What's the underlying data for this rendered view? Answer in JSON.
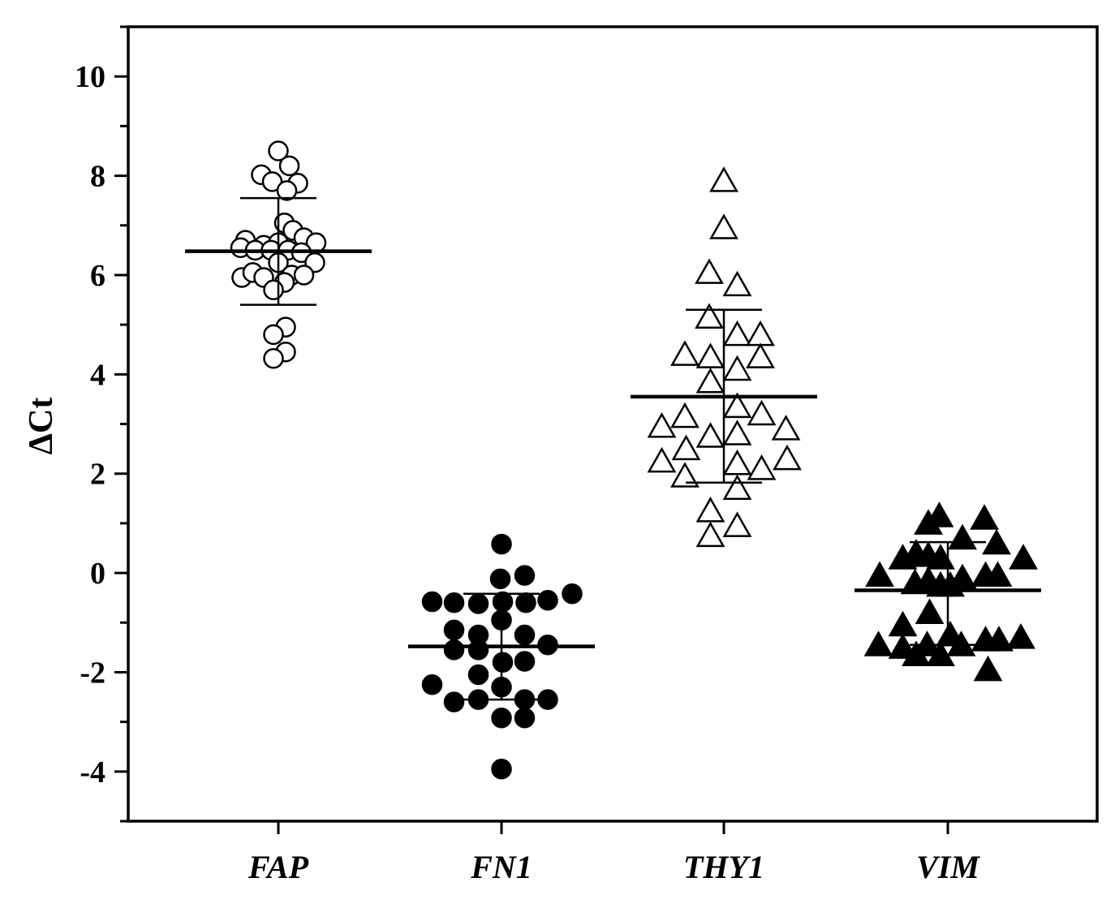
{
  "chart_data": {
    "type": "scatter",
    "subtype": "dot-plot with mean and SD",
    "xlabel": "",
    "ylabel": "ΔCt",
    "ylim": [
      -5,
      11
    ],
    "yticks": [
      -4,
      -2,
      0,
      2,
      4,
      6,
      8,
      10
    ],
    "ytick_labels": [
      "-4",
      "-2",
      "0",
      "2",
      "4",
      "6",
      "8",
      "10"
    ],
    "grid": false,
    "legend": "none",
    "categories": [
      "FAP",
      "FN1",
      "THY1",
      "VIM"
    ],
    "series": [
      {
        "category": "FAP",
        "marker": "circle-open",
        "mean": 6.48,
        "sd_low": 5.4,
        "sd_high": 7.55,
        "points": [
          {
            "x": 0,
            "y": 8.5
          },
          {
            "x": 0.45,
            "y": 8.2
          },
          {
            "x": -0.7,
            "y": 8.02
          },
          {
            "x": -0.25,
            "y": 7.88
          },
          {
            "x": 0.8,
            "y": 7.85
          },
          {
            "x": 0.35,
            "y": 7.7
          },
          {
            "x": 0.25,
            "y": 7.05
          },
          {
            "x": 0.6,
            "y": 6.9
          },
          {
            "x": -1.35,
            "y": 6.7
          },
          {
            "x": -0.6,
            "y": 6.6
          },
          {
            "x": 0,
            "y": 6.65
          },
          {
            "x": 1.05,
            "y": 6.75
          },
          {
            "x": 1.55,
            "y": 6.65
          },
          {
            "x": -1.55,
            "y": 6.55
          },
          {
            "x": -0.95,
            "y": 6.5
          },
          {
            "x": -0.3,
            "y": 6.5
          },
          {
            "x": 0.4,
            "y": 6.5
          },
          {
            "x": 0.95,
            "y": 6.45
          },
          {
            "x": 0,
            "y": 6.25
          },
          {
            "x": 1.5,
            "y": 6.25
          },
          {
            "x": -1.5,
            "y": 5.95
          },
          {
            "x": -1.05,
            "y": 6.05
          },
          {
            "x": -0.6,
            "y": 5.95
          },
          {
            "x": 0.55,
            "y": 6.0
          },
          {
            "x": 1.05,
            "y": 6.0
          },
          {
            "x": 0.25,
            "y": 5.85
          },
          {
            "x": -0.2,
            "y": 5.7
          },
          {
            "x": 0.3,
            "y": 4.95
          },
          {
            "x": -0.2,
            "y": 4.8
          },
          {
            "x": 0.3,
            "y": 4.45
          },
          {
            "x": -0.2,
            "y": 4.32
          }
        ]
      },
      {
        "category": "FN1",
        "marker": "circle-filled",
        "mean": -1.48,
        "sd_low": -2.55,
        "sd_high": -0.42,
        "points": [
          {
            "x": 0,
            "y": 0.58
          },
          {
            "x": 0.95,
            "y": -0.05
          },
          {
            "x": -0.05,
            "y": -0.12
          },
          {
            "x": 2.9,
            "y": -0.42
          },
          {
            "x": -2.85,
            "y": -0.58
          },
          {
            "x": -1.95,
            "y": -0.6
          },
          {
            "x": -0.95,
            "y": -0.62
          },
          {
            "x": 0.05,
            "y": -0.58
          },
          {
            "x": 1.0,
            "y": -0.6
          },
          {
            "x": 1.9,
            "y": -0.55
          },
          {
            "x": 0,
            "y": -0.95
          },
          {
            "x": -1.95,
            "y": -1.15
          },
          {
            "x": -0.95,
            "y": -1.25
          },
          {
            "x": 0.95,
            "y": -1.25
          },
          {
            "x": -1.95,
            "y": -1.55
          },
          {
            "x": -0.95,
            "y": -1.55
          },
          {
            "x": 1.9,
            "y": -1.45
          },
          {
            "x": 0.05,
            "y": -1.8
          },
          {
            "x": 0.95,
            "y": -1.78
          },
          {
            "x": -0.95,
            "y": -2.05
          },
          {
            "x": -2.85,
            "y": -2.25
          },
          {
            "x": 0,
            "y": -2.3
          },
          {
            "x": -1.95,
            "y": -2.6
          },
          {
            "x": -0.95,
            "y": -2.55
          },
          {
            "x": 0.95,
            "y": -2.55
          },
          {
            "x": 1.9,
            "y": -2.55
          },
          {
            "x": 0,
            "y": -2.92
          },
          {
            "x": 0.95,
            "y": -2.92
          },
          {
            "x": 0,
            "y": -3.95
          }
        ]
      },
      {
        "category": "THY1",
        "marker": "triangle-open",
        "mean": 3.55,
        "sd_low": 1.82,
        "sd_high": 5.3,
        "points": [
          {
            "x": 0,
            "y": 7.9
          },
          {
            "x": 0,
            "y": 6.95
          },
          {
            "x": -0.6,
            "y": 6.05
          },
          {
            "x": 0.55,
            "y": 5.8
          },
          {
            "x": -0.6,
            "y": 5.15
          },
          {
            "x": 0.55,
            "y": 4.8
          },
          {
            "x": 1.5,
            "y": 4.8
          },
          {
            "x": -1.6,
            "y": 4.4
          },
          {
            "x": -0.55,
            "y": 4.35
          },
          {
            "x": 1.5,
            "y": 4.35
          },
          {
            "x": 0.55,
            "y": 4.1
          },
          {
            "x": -0.55,
            "y": 3.85
          },
          {
            "x": 0.55,
            "y": 3.35
          },
          {
            "x": -1.6,
            "y": 3.15
          },
          {
            "x": 1.55,
            "y": 3.2
          },
          {
            "x": -2.55,
            "y": 2.95
          },
          {
            "x": 2.55,
            "y": 2.9
          },
          {
            "x": -0.55,
            "y": 2.75
          },
          {
            "x": 0.55,
            "y": 2.8
          },
          {
            "x": -1.55,
            "y": 2.5
          },
          {
            "x": -2.55,
            "y": 2.25
          },
          {
            "x": 2.6,
            "y": 2.3
          },
          {
            "x": 0.55,
            "y": 2.2
          },
          {
            "x": 1.55,
            "y": 2.1
          },
          {
            "x": -1.6,
            "y": 1.95
          },
          {
            "x": 0.55,
            "y": 1.7
          },
          {
            "x": -0.55,
            "y": 1.25
          },
          {
            "x": 0.55,
            "y": 0.95
          },
          {
            "x": -0.55,
            "y": 0.75
          }
        ]
      },
      {
        "category": "VIM",
        "marker": "triangle-filled",
        "mean": -0.35,
        "sd_low": -1.45,
        "sd_high": 0.62,
        "points": [
          {
            "x": -0.35,
            "y": 1.15
          },
          {
            "x": 1.5,
            "y": 1.1
          },
          {
            "x": -0.8,
            "y": 1.0
          },
          {
            "x": 0.6,
            "y": 0.7
          },
          {
            "x": 2.0,
            "y": 0.6
          },
          {
            "x": -1.85,
            "y": 0.3
          },
          {
            "x": -1.3,
            "y": 0.4
          },
          {
            "x": -0.8,
            "y": 0.35
          },
          {
            "x": -0.3,
            "y": 0.3
          },
          {
            "x": 3.1,
            "y": 0.3
          },
          {
            "x": -2.8,
            "y": -0.05
          },
          {
            "x": -1.35,
            "y": -0.2
          },
          {
            "x": -0.8,
            "y": -0.15
          },
          {
            "x": 0.6,
            "y": -0.1
          },
          {
            "x": 1.55,
            "y": -0.05
          },
          {
            "x": 2.05,
            "y": -0.05
          },
          {
            "x": -0.3,
            "y": -0.25
          },
          {
            "x": 0.1,
            "y": -0.25
          },
          {
            "x": -0.75,
            "y": -0.8
          },
          {
            "x": -1.85,
            "y": -1.05
          },
          {
            "x": 0.1,
            "y": -1.25
          },
          {
            "x": -2.85,
            "y": -1.45
          },
          {
            "x": -1.85,
            "y": -1.5
          },
          {
            "x": -0.85,
            "y": -1.45
          },
          {
            "x": 0.55,
            "y": -1.45
          },
          {
            "x": 1.55,
            "y": -1.35
          },
          {
            "x": 2.1,
            "y": -1.35
          },
          {
            "x": 3.0,
            "y": -1.3
          },
          {
            "x": -1.3,
            "y": -1.65
          },
          {
            "x": -0.3,
            "y": -1.65
          },
          {
            "x": 1.65,
            "y": -1.95
          }
        ]
      }
    ]
  }
}
